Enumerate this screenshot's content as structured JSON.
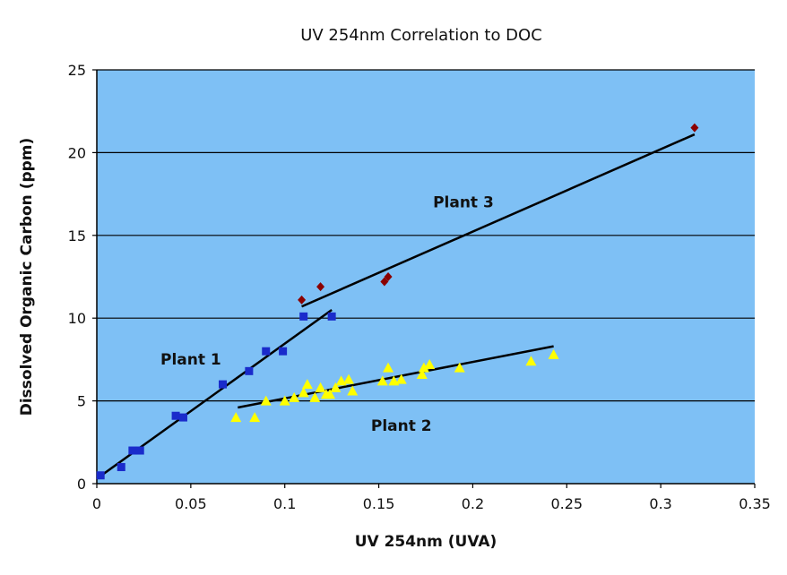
{
  "chart_data": {
    "type": "scatter",
    "title": "UV 254nm Correlation to DOC",
    "xlabel": "UV 254nm (UVA)",
    "ylabel": "Dissolved Organic Carbon (ppm)",
    "xlim": [
      0,
      0.35
    ],
    "ylim": [
      0,
      25
    ],
    "x_ticks": [
      "0",
      "0.05",
      "0.1",
      "0.15",
      "0.2",
      "0.25",
      "0.3",
      "0.35"
    ],
    "y_ticks": [
      "0",
      "5",
      "10",
      "15",
      "20",
      "25"
    ],
    "grid": "horizontal",
    "legend": "none",
    "plot_background": "#7EC0F5",
    "series": [
      {
        "label": "Plant 1",
        "marker": "square",
        "color": "#1A2BCB",
        "points": [
          [
            0.002,
            0.5
          ],
          [
            0.013,
            1.0
          ],
          [
            0.019,
            2.0
          ],
          [
            0.023,
            2.0
          ],
          [
            0.042,
            4.1
          ],
          [
            0.046,
            4.0
          ],
          [
            0.067,
            6.0
          ],
          [
            0.081,
            6.8
          ],
          [
            0.09,
            8.0
          ],
          [
            0.099,
            8.0
          ],
          [
            0.11,
            10.1
          ],
          [
            0.125,
            10.1
          ]
        ],
        "trendline": [
          [
            0.0,
            0.3
          ],
          [
            0.125,
            10.5
          ]
        ]
      },
      {
        "label": "Plant 2",
        "marker": "triangle",
        "color": "#FFFF00",
        "points": [
          [
            0.074,
            4.0
          ],
          [
            0.084,
            4.0
          ],
          [
            0.09,
            5.0
          ],
          [
            0.1,
            5.0
          ],
          [
            0.105,
            5.2
          ],
          [
            0.11,
            5.5
          ],
          [
            0.112,
            6.0
          ],
          [
            0.116,
            5.2
          ],
          [
            0.119,
            5.8
          ],
          [
            0.122,
            5.4
          ],
          [
            0.124,
            5.4
          ],
          [
            0.127,
            5.8
          ],
          [
            0.13,
            6.2
          ],
          [
            0.134,
            6.3
          ],
          [
            0.136,
            5.6
          ],
          [
            0.152,
            6.2
          ],
          [
            0.155,
            7.0
          ],
          [
            0.158,
            6.2
          ],
          [
            0.162,
            6.3
          ],
          [
            0.173,
            6.6
          ],
          [
            0.174,
            7.0
          ],
          [
            0.177,
            7.2
          ],
          [
            0.193,
            7.0
          ],
          [
            0.231,
            7.4
          ],
          [
            0.243,
            7.8
          ]
        ],
        "trendline": [
          [
            0.075,
            4.6
          ],
          [
            0.243,
            8.3
          ]
        ]
      },
      {
        "label": "Plant 3",
        "marker": "diamond",
        "color": "#8B0000",
        "points": [
          [
            0.109,
            11.1
          ],
          [
            0.119,
            11.9
          ],
          [
            0.153,
            12.2
          ],
          [
            0.155,
            12.5
          ],
          [
            0.318,
            21.5
          ]
        ],
        "trendline": [
          [
            0.109,
            10.7
          ],
          [
            0.318,
            21.1
          ]
        ]
      }
    ]
  }
}
